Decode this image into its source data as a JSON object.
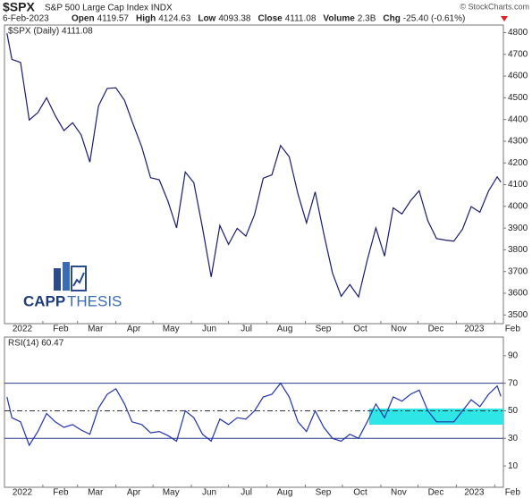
{
  "header": {
    "symbol": "$SPX",
    "name": "S&P 500 Large Cap Index INDX",
    "date": "6-Feb-2023",
    "fields": [
      [
        "Open",
        "4119.57"
      ],
      [
        "High",
        "4124.63"
      ],
      [
        "Low",
        "4093.38"
      ],
      [
        "Close",
        "4111.08"
      ],
      [
        "Volume",
        "2.3B"
      ],
      [
        "Chg",
        "-25.40 (-0.61%)"
      ]
    ],
    "credit": "© StockCharts.com",
    "logo_a": "CAPP",
    "logo_b": "THESIS"
  },
  "chart_data": [
    {
      "type": "line",
      "legend": "$SPX (Daily) 4111.08",
      "color": "#1a1a6e",
      "x": [
        "2022-01-03",
        "2022-01-07",
        "2022-01-14",
        "2022-01-21",
        "2022-01-28",
        "2022-02-04",
        "2022-02-11",
        "2022-02-18",
        "2022-02-25",
        "2022-03-04",
        "2022-03-11",
        "2022-03-18",
        "2022-03-25",
        "2022-04-01",
        "2022-04-08",
        "2022-04-14",
        "2022-04-22",
        "2022-04-29",
        "2022-05-06",
        "2022-05-13",
        "2022-05-20",
        "2022-05-27",
        "2022-06-03",
        "2022-06-10",
        "2022-06-17",
        "2022-06-24",
        "2022-07-01",
        "2022-07-08",
        "2022-07-15",
        "2022-07-22",
        "2022-07-29",
        "2022-08-05",
        "2022-08-12",
        "2022-08-19",
        "2022-08-26",
        "2022-09-02",
        "2022-09-09",
        "2022-09-16",
        "2022-09-23",
        "2022-09-30",
        "2022-10-07",
        "2022-10-14",
        "2022-10-21",
        "2022-10-28",
        "2022-11-04",
        "2022-11-11",
        "2022-11-18",
        "2022-11-25",
        "2022-12-02",
        "2022-12-09",
        "2022-12-16",
        "2022-12-23",
        "2022-12-30",
        "2023-01-06",
        "2023-01-13",
        "2023-01-20",
        "2023-01-27",
        "2023-02-03",
        "2023-02-06"
      ],
      "values": [
        4797,
        4677,
        4663,
        4398,
        4432,
        4500,
        4418,
        4349,
        4385,
        4329,
        4204,
        4463,
        4543,
        4546,
        4488,
        4393,
        4272,
        4132,
        4123,
        4024,
        3901,
        4158,
        4109,
        3901,
        3675,
        3912,
        3825,
        3899,
        3863,
        3962,
        4130,
        4145,
        4280,
        4228,
        4058,
        3924,
        4067,
        3873,
        3693,
        3586,
        3640,
        3583,
        3752,
        3901,
        3771,
        3993,
        3965,
        4026,
        4072,
        3934,
        3852,
        3845,
        3840,
        3895,
        3999,
        3973,
        4071,
        4136,
        4111.08
      ],
      "xlim": [
        "2022-01-01",
        "2023-02-08"
      ],
      "xticks": [
        {
          "value": "2022-01-01",
          "label": "2022"
        },
        {
          "value": "2022-02-01",
          "label": "Feb"
        },
        {
          "value": "2022-03-01",
          "label": "Mar"
        },
        {
          "value": "2022-04-01",
          "label": "Apr"
        },
        {
          "value": "2022-05-01",
          "label": "May"
        },
        {
          "value": "2022-06-01",
          "label": "Jun"
        },
        {
          "value": "2022-07-01",
          "label": "Jul"
        },
        {
          "value": "2022-08-01",
          "label": "Aug"
        },
        {
          "value": "2022-09-01",
          "label": "Sep"
        },
        {
          "value": "2022-10-01",
          "label": "Oct"
        },
        {
          "value": "2022-11-01",
          "label": "Nov"
        },
        {
          "value": "2022-12-01",
          "label": "Dec"
        },
        {
          "value": "2023-01-01",
          "label": "2023"
        },
        {
          "value": "2023-02-01",
          "label": "Feb"
        }
      ],
      "ylim": [
        3460,
        4835
      ],
      "yticks": [
        3500,
        3600,
        3700,
        3800,
        3900,
        4000,
        4100,
        4200,
        4300,
        4400,
        4500,
        4600,
        4700,
        4800
      ],
      "grid": false
    },
    {
      "type": "line",
      "legend": "RSI(14) 60.47",
      "color": "#2233aa",
      "x": [
        "2022-01-03",
        "2022-01-07",
        "2022-01-14",
        "2022-01-21",
        "2022-01-28",
        "2022-02-04",
        "2022-02-11",
        "2022-02-18",
        "2022-02-25",
        "2022-03-04",
        "2022-03-11",
        "2022-03-18",
        "2022-03-25",
        "2022-04-01",
        "2022-04-08",
        "2022-04-14",
        "2022-04-22",
        "2022-04-29",
        "2022-05-06",
        "2022-05-13",
        "2022-05-20",
        "2022-05-27",
        "2022-06-03",
        "2022-06-10",
        "2022-06-17",
        "2022-06-24",
        "2022-07-01",
        "2022-07-08",
        "2022-07-15",
        "2022-07-22",
        "2022-07-29",
        "2022-08-05",
        "2022-08-12",
        "2022-08-19",
        "2022-08-26",
        "2022-09-02",
        "2022-09-09",
        "2022-09-16",
        "2022-09-23",
        "2022-09-30",
        "2022-10-07",
        "2022-10-14",
        "2022-10-21",
        "2022-10-28",
        "2022-11-04",
        "2022-11-11",
        "2022-11-18",
        "2022-11-25",
        "2022-12-02",
        "2022-12-09",
        "2022-12-16",
        "2022-12-23",
        "2022-12-30",
        "2023-01-06",
        "2023-01-13",
        "2023-01-20",
        "2023-01-27",
        "2023-02-03",
        "2023-02-06"
      ],
      "values": [
        60,
        45,
        42,
        25,
        35,
        48,
        42,
        38,
        40,
        36,
        33,
        52,
        62,
        66,
        55,
        42,
        40,
        34,
        35,
        32,
        28,
        50,
        45,
        33,
        28,
        44,
        40,
        45,
        44,
        50,
        60,
        62,
        70,
        60,
        42,
        35,
        50,
        38,
        30,
        28,
        33,
        30,
        42,
        55,
        45,
        60,
        57,
        62,
        65,
        50,
        42,
        42,
        42,
        50,
        58,
        53,
        62,
        68,
        60.47
      ],
      "xlim": [
        "2022-01-01",
        "2023-02-08"
      ],
      "xticks": [
        {
          "value": "2022-01-01",
          "label": "2022"
        },
        {
          "value": "2022-02-01",
          "label": "Feb"
        },
        {
          "value": "2022-03-01",
          "label": "Mar"
        },
        {
          "value": "2022-04-01",
          "label": "Apr"
        },
        {
          "value": "2022-05-01",
          "label": "May"
        },
        {
          "value": "2022-06-01",
          "label": "Jun"
        },
        {
          "value": "2022-07-01",
          "label": "Jul"
        },
        {
          "value": "2022-08-01",
          "label": "Aug"
        },
        {
          "value": "2022-09-01",
          "label": "Sep"
        },
        {
          "value": "2022-10-01",
          "label": "Oct"
        },
        {
          "value": "2022-11-01",
          "label": "Nov"
        },
        {
          "value": "2022-12-01",
          "label": "Dec"
        },
        {
          "value": "2023-01-01",
          "label": "2023"
        },
        {
          "value": "2023-02-01",
          "label": "Feb"
        }
      ],
      "ylim": [
        -5.5,
        103.5
      ],
      "yticks": [
        10,
        30,
        50,
        70,
        90
      ],
      "reference_lines": [
        30,
        50,
        70
      ],
      "grid": false
    }
  ]
}
